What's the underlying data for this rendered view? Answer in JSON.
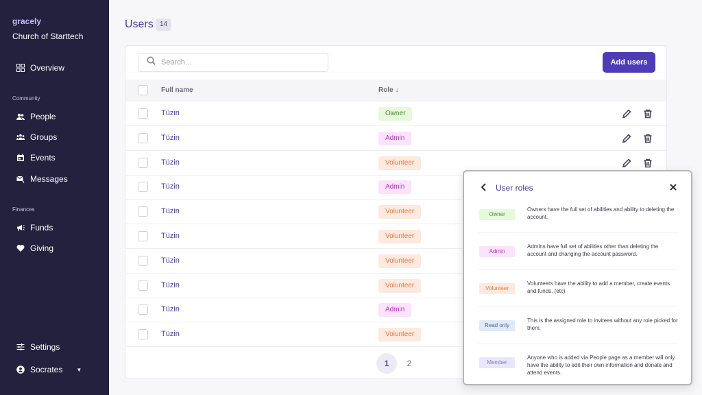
{
  "sidebar": {
    "brand": "gracely",
    "org": "Church of Starttech",
    "overview": "Overview",
    "community_label": "Community",
    "people": "People",
    "groups": "Groups",
    "events": "Events",
    "messages": "Messages",
    "finances_label": "Finances",
    "funds": "Funds",
    "giving": "Giving",
    "settings": "Settings",
    "user": "Socrates"
  },
  "header": {
    "title": "Users",
    "count": "14"
  },
  "toolbar": {
    "search_placeholder": "Search...",
    "add_users": "Add users"
  },
  "table": {
    "col_name": "Full name",
    "col_role": "Role ↓",
    "rows": [
      {
        "name": "Tüzin",
        "role": "Owner"
      },
      {
        "name": "Tüzin",
        "role": "Admin"
      },
      {
        "name": "Tüzin",
        "role": "Volunteer"
      },
      {
        "name": "Tüzin",
        "role": "Admin"
      },
      {
        "name": "Tüzin",
        "role": "Volunteer"
      },
      {
        "name": "Tüzin",
        "role": "Volunteer"
      },
      {
        "name": "Tüzin",
        "role": "Volunteer"
      },
      {
        "name": "Tüzin",
        "role": "Volunteer"
      },
      {
        "name": "Tüzin",
        "role": "Admin"
      },
      {
        "name": "Tüzin",
        "role": "Volunteer"
      }
    ]
  },
  "pagination": {
    "page1": "1",
    "page2": "2"
  },
  "popover": {
    "title": "User roles",
    "roles": [
      {
        "name": "Owner",
        "desc": "Owners have the full set of abilities and ability to deleting the account."
      },
      {
        "name": "Admin",
        "desc": "Admins have full set of abilities other than deleting the account and changing the account password."
      },
      {
        "name": "Volunteer",
        "desc": "Volunteers have the ability to add a member, create events and funds, (etc)"
      },
      {
        "name": "Read only",
        "desc": "This is the assigned role to invitees without any role picked for them."
      },
      {
        "name": "Member",
        "desc": "Anyone who is added via People page as a member will only have the ability to edit their own information and donate and attend events."
      }
    ]
  },
  "colors": {
    "sidebar_bg": "#23213d",
    "accent": "#4d3cb5",
    "title": "#4a3fa8"
  }
}
